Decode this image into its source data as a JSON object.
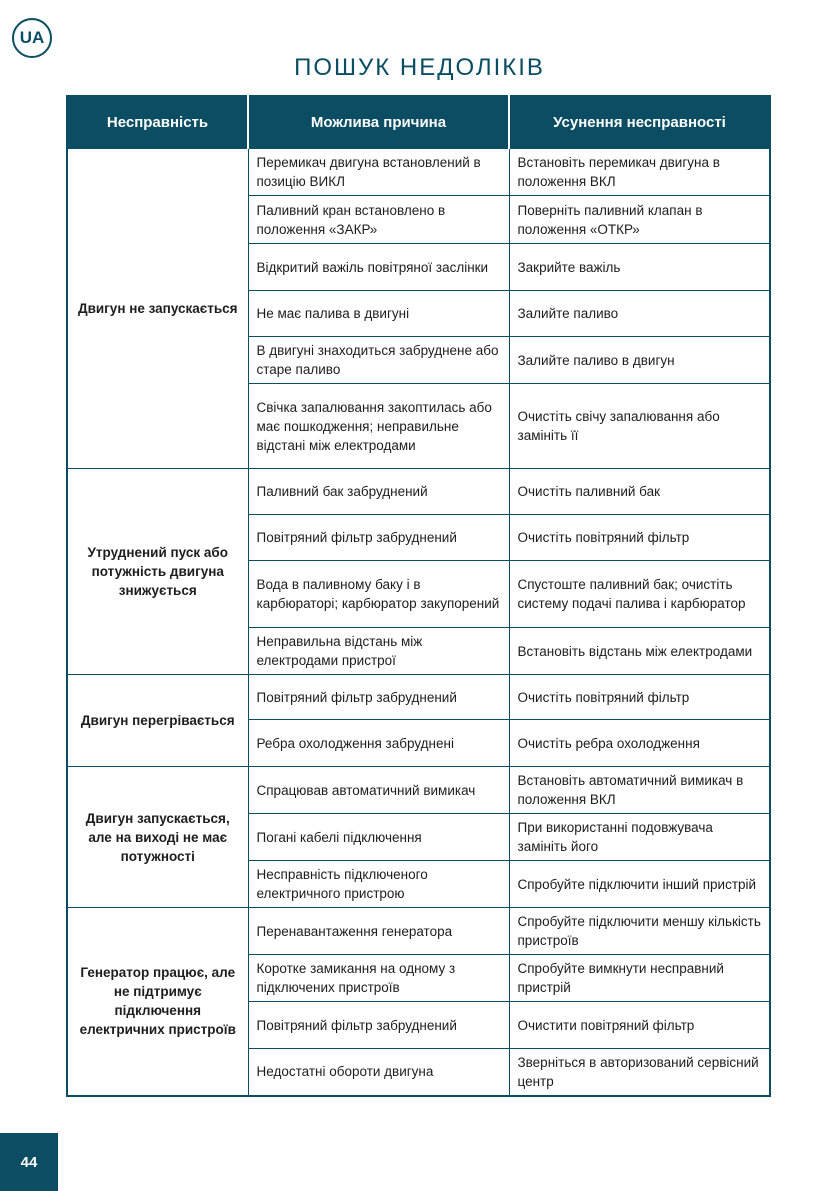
{
  "lang_badge": "UA",
  "title": "ПОШУК НЕДОЛІКІВ",
  "page_number": "44",
  "accent_color": "#0b4d63",
  "table": {
    "headers": [
      "Несправність",
      "Можлива причина",
      "Усунення несправності"
    ],
    "groups": [
      {
        "fault": "Двигун  не запускається",
        "rows": [
          {
            "cause": "Перемикач двигуна встановлений в позицію ВИКЛ",
            "fix": "Встановіть перемикач двигуна в положення ВКЛ",
            "h": 47
          },
          {
            "cause": "Паливний кран встановлено в положення «ЗАКР»",
            "fix": "Поверніть паливний клапан в положення «ОТКР»",
            "h": 48
          },
          {
            "cause": "Відкритий важіль повітряної заслінки",
            "fix": "Закрийте важіль",
            "h": 47
          },
          {
            "cause": "Не має палива в двигуні",
            "fix": "Залийте паливо",
            "h": 46
          },
          {
            "cause": "В двигуні знаходиться забруднене або старе паливо",
            "fix": "Залийте паливо в двигун",
            "h": 47
          },
          {
            "cause": "Свічка запалювання закоптилась або має пошкодження; неправильне відстані між електродами",
            "fix": "Очистіть свічу запалювання або замініть її",
            "h": 85
          }
        ]
      },
      {
        "fault": "Утруднений пуск або потужність двигуна знижується",
        "rows": [
          {
            "cause": "Паливний бак забруднений",
            "fix": "Очистіть паливний бак",
            "h": 46
          },
          {
            "cause": "Повітряний фільтр забруднений",
            "fix": "Очистіть повітряний фільтр",
            "h": 46
          },
          {
            "cause": "Вода в паливному баку і в карбюраторі; карбюратор закупорений",
            "fix": "Спустоште паливний бак; очистіть систему подачі палива і карбюратор",
            "h": 67
          },
          {
            "cause": "Неправильна відстань між електродами пристрої",
            "fix": "Встановіть відстань між електродами",
            "h": 47
          }
        ]
      },
      {
        "fault": "Двигун перегрівається",
        "rows": [
          {
            "cause": "Повітряний фільтр забруднений",
            "fix": "Очистіть повітряний фільтр",
            "h": 45
          },
          {
            "cause": "Ребра охолодження забруднені",
            "fix": "Очистіть ребра охолодження",
            "h": 47
          }
        ]
      },
      {
        "fault": "Двигун запускається, але на виході не має потужності",
        "rows": [
          {
            "cause": "Спрацював автоматичний вимикач",
            "fix": "Встановіть автоматичний вимикач в положення ВКЛ",
            "h": 47
          },
          {
            "cause": "Погані кабелі підключення",
            "fix": "При використанні подовжувача замініть його",
            "h": 47
          },
          {
            "cause": "Несправність підключеного електричного пристрою",
            "fix": "Спробуйте підключити інший пристрій",
            "h": 47
          }
        ]
      },
      {
        "fault": "Генератор працює, але не підтримує підключення електричних пристроїв",
        "rows": [
          {
            "cause": "Перенавантаження генератора",
            "fix": "Спробуйте підключити меншу кількість пристроїв",
            "h": 47
          },
          {
            "cause": "Коротке замикання на одному з підключених пристроїв",
            "fix": "Спробуйте вимкнути несправний пристрій",
            "h": 47
          },
          {
            "cause": "Повітряний фільтр забруднений",
            "fix": "Очистити повітряний фільтр",
            "h": 47
          },
          {
            "cause": "Недостатні обороти двигуна",
            "fix": "Зверніться в авторизований сервісний центр",
            "h": 47
          }
        ]
      }
    ]
  }
}
